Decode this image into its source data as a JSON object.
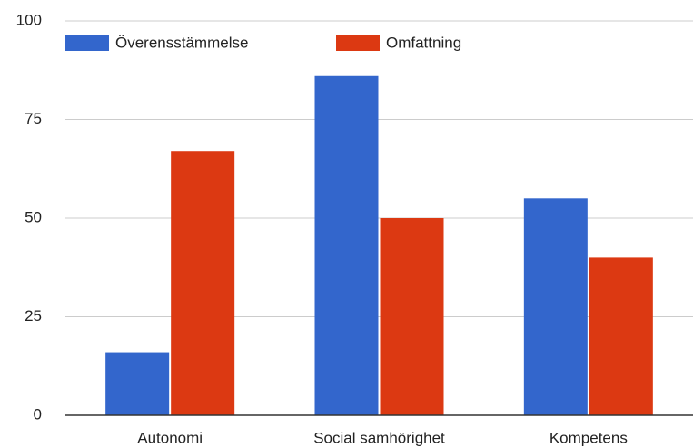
{
  "chart_data": {
    "type": "bar",
    "categories": [
      "Autonomi",
      "Social samhörighet",
      "Kompetens"
    ],
    "series": [
      {
        "name": "Överensstämmelse",
        "color": "#3366cc",
        "values": [
          16,
          86,
          55
        ]
      },
      {
        "name": "Omfattning",
        "color": "#dc3912",
        "values": [
          67,
          50,
          40
        ]
      }
    ],
    "ylim": [
      0,
      100
    ],
    "yticks": [
      0,
      25,
      50,
      75,
      100
    ],
    "grid": true,
    "legend": "top"
  }
}
